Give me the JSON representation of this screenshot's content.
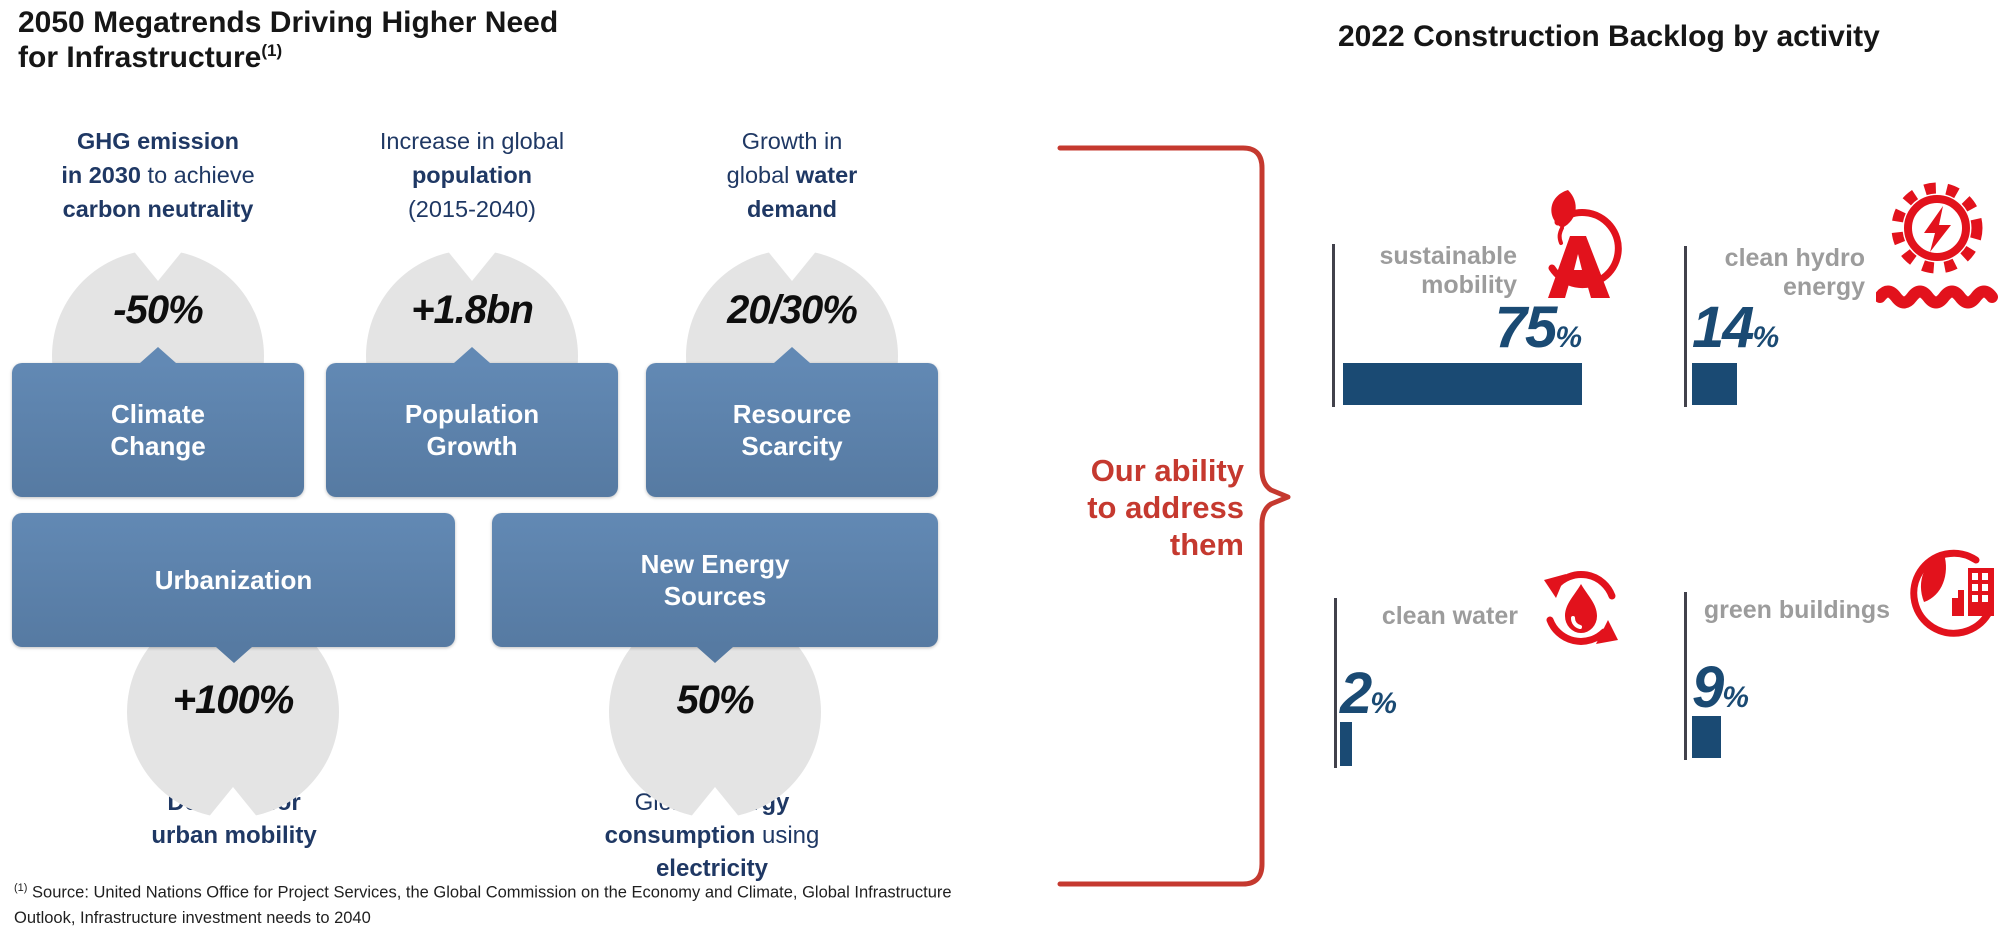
{
  "colors": {
    "navy_text": "#1f3864",
    "steel_blue_box": "#5b83af",
    "bar_navy": "#1a4a73",
    "red_accent": "#c5392f",
    "icon_red": "#e2121c",
    "gray_label": "#9c9c9c",
    "circle_gray": "#e4e4e4"
  },
  "left": {
    "title_lines": [
      "2050 Megatrends Driving Higher Need",
      "for Infrastructure"
    ],
    "title_superscript": "(1)",
    "columns": [
      {
        "label_lines": [
          [
            {
              "t": "GHG emission",
              "b": true
            }
          ],
          [
            {
              "t": "in 2030",
              "b": true
            },
            {
              "t": " to achieve",
              "b": false
            }
          ],
          [
            {
              "t": "carbon neutrality",
              "b": true
            }
          ]
        ],
        "stat": "-50%",
        "box_lines": [
          "Climate",
          "Change"
        ]
      },
      {
        "label_lines": [
          [
            {
              "t": "Increase in global",
              "b": false
            }
          ],
          [
            {
              "t": "population",
              "b": true
            }
          ],
          [
            {
              "t": "(2015-2040)",
              "b": false
            }
          ]
        ],
        "stat": "+1.8bn",
        "box_lines": [
          "Population",
          "Growth"
        ]
      },
      {
        "label_lines": [
          [
            {
              "t": "Growth in",
              "b": false
            }
          ],
          [
            {
              "t": "global ",
              "b": false
            },
            {
              "t": "water",
              "b": true
            }
          ],
          [
            {
              "t": "demand",
              "b": true
            }
          ]
        ],
        "stat": "20/30%",
        "box_lines": [
          "Resource",
          "Scarcity"
        ]
      }
    ],
    "wide_rows": [
      {
        "box_lines": [
          "Urbanization"
        ],
        "stat": "+100%",
        "caption_lines": [
          [
            {
              "t": "Demand for",
              "b": true
            }
          ],
          [
            {
              "t": "urban mobility",
              "b": true
            }
          ]
        ]
      },
      {
        "box_lines": [
          "New Energy",
          "Sources"
        ],
        "stat": "50%",
        "caption_lines": [
          [
            {
              "t": "Global ",
              "b": false
            },
            {
              "t": "energy",
              "b": true
            }
          ],
          [
            {
              "t": "consumption",
              "b": true
            },
            {
              "t": " using",
              "b": false
            }
          ],
          [
            {
              "t": "electricity",
              "b": true
            }
          ]
        ]
      }
    ],
    "footnote_superscript": "(1)",
    "footnote_text": " Source: United Nations Office for Project Services, the Global Commission on the Economy and Climate, Global Infrastructure Outlook, Infrastructure investment needs to 2040"
  },
  "middle": {
    "callout_lines": [
      "Our ability",
      "to address",
      "them"
    ]
  },
  "right": {
    "title": "2022 Construction Backlog by activity",
    "items": [
      {
        "label_lines": [
          "sustainable",
          "mobility"
        ],
        "value": "75",
        "unit": "%",
        "pct": 75,
        "icon": "leaf-swoosh-a-icon"
      },
      {
        "label_lines": [
          "clean hydro",
          "energy"
        ],
        "value": "14",
        "unit": "%",
        "pct": 14,
        "icon": "turbine-bolt-wave-icon"
      },
      {
        "label_lines": [
          "clean water"
        ],
        "value": "2",
        "unit": "%",
        "pct": 2,
        "icon": "droplet-recycle-icon"
      },
      {
        "label_lines": [
          "green buildings"
        ],
        "value": "9",
        "unit": "%",
        "pct": 9,
        "icon": "leaf-buildings-icon"
      }
    ]
  },
  "chart_data": {
    "type": "bar",
    "title": "2022 Construction Backlog by activity",
    "categories": [
      "sustainable mobility",
      "clean hydro energy",
      "clean water",
      "green buildings"
    ],
    "values": [
      75,
      14,
      2,
      9
    ],
    "unit": "%",
    "bar_color": "#1a4a73",
    "orientation": "horizontal"
  }
}
